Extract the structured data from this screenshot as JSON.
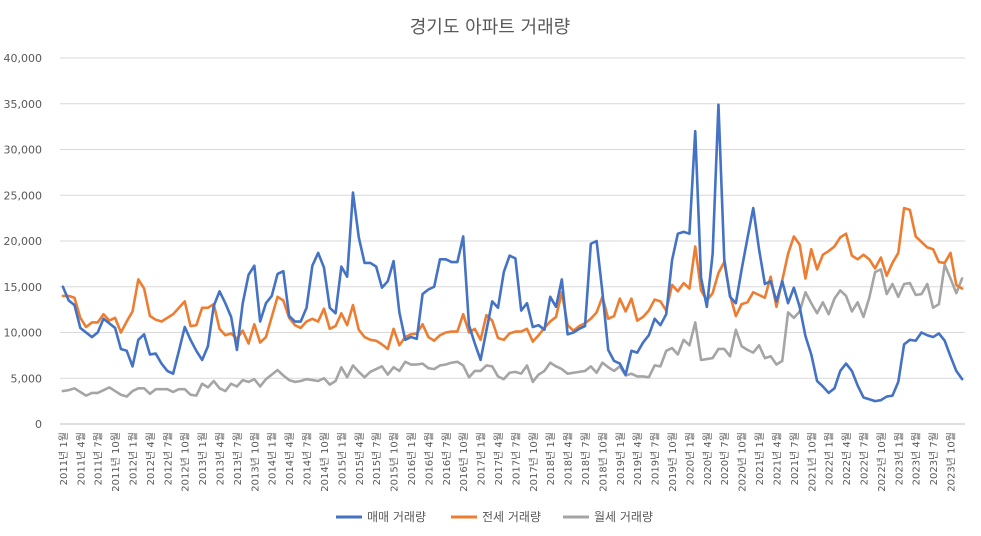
{
  "chart_data": {
    "type": "line",
    "title": "경기도 아파트 거래량",
    "xlabel": "",
    "ylabel": "",
    "ylim": [
      0,
      40000
    ],
    "y_ticks": [
      "0",
      "5,000",
      "10,000",
      "15,000",
      "20,000",
      "25,000",
      "30,000",
      "35,000",
      "40,000"
    ],
    "grid": true,
    "legend_position": "bottom",
    "categories": [
      "2011년 1월",
      "2011년 2월",
      "2011년 3월",
      "2011년 4월",
      "2011년 5월",
      "2011년 6월",
      "2011년 7월",
      "2011년 8월",
      "2011년 9월",
      "2011년 10월",
      "2011년 11월",
      "2011년 12월",
      "2012년 1월",
      "2012년 2월",
      "2012년 3월",
      "2012년 4월",
      "2012년 5월",
      "2012년 6월",
      "2012년 7월",
      "2012년 8월",
      "2012년 9월",
      "2012년 10월",
      "2012년 11월",
      "2012년 12월",
      "2013년 1월",
      "2013년 2월",
      "2013년 3월",
      "2013년 4월",
      "2013년 5월",
      "2013년 6월",
      "2013년 7월",
      "2013년 8월",
      "2013년 9월",
      "2013년 10월",
      "2013년 11월",
      "2013년 12월",
      "2014년 1월",
      "2014년 2월",
      "2014년 3월",
      "2014년 4월",
      "2014년 5월",
      "2014년 6월",
      "2014년 7월",
      "2014년 8월",
      "2014년 9월",
      "2014년 10월",
      "2014년 11월",
      "2014년 12월",
      "2015년 1월",
      "2015년 2월",
      "2015년 3월",
      "2015년 4월",
      "2015년 5월",
      "2015년 6월",
      "2015년 7월",
      "2015년 8월",
      "2015년 9월",
      "2015년 10월",
      "2015년 11월",
      "2015년 12월",
      "2016년 1월",
      "2016년 2월",
      "2016년 3월",
      "2016년 4월",
      "2016년 5월",
      "2016년 6월",
      "2016년 7월",
      "2016년 8월",
      "2016년 9월",
      "2016년 10월",
      "2016년 11월",
      "2016년 12월",
      "2017년 1월",
      "2017년 2월",
      "2017년 3월",
      "2017년 4월",
      "2017년 5월",
      "2017년 6월",
      "2017년 7월",
      "2017년 8월",
      "2017년 9월",
      "2017년 10월",
      "2017년 11월",
      "2017년 12월",
      "2018년 1월",
      "2018년 2월",
      "2018년 3월",
      "2018년 4월",
      "2018년 5월",
      "2018년 6월",
      "2018년 7월",
      "2018년 8월",
      "2018년 9월",
      "2018년 10월",
      "2018년 11월",
      "2018년 12월",
      "2019년 1월",
      "2019년 2월",
      "2019년 3월",
      "2019년 4월",
      "2019년 5월",
      "2019년 6월",
      "2019년 7월",
      "2019년 8월",
      "2019년 9월",
      "2019년 10월",
      "2019년 11월",
      "2019년 12월",
      "2020년 1월",
      "2020년 2월",
      "2020년 3월",
      "2020년 4월",
      "2020년 5월",
      "2020년 6월",
      "2020년 7월",
      "2020년 8월",
      "2020년 9월",
      "2020년 10월",
      "2020년 11월",
      "2020년 12월",
      "2021년 1월",
      "2021년 2월",
      "2021년 3월",
      "2021년 4월",
      "2021년 5월",
      "2021년 6월",
      "2021년 7월",
      "2021년 8월",
      "2021년 9월",
      "2021년 10월",
      "2021년 11월",
      "2021년 12월",
      "2022년 1월",
      "2022년 2월",
      "2022년 3월",
      "2022년 4월",
      "2022년 5월",
      "2022년 6월",
      "2022년 7월",
      "2022년 8월",
      "2022년 9월",
      "2022년 10월",
      "2022년 11월",
      "2022년 12월",
      "2023년 1월",
      "2023년 2월",
      "2023년 3월",
      "2023년 4월",
      "2023년 5월",
      "2023년 6월",
      "2023년 7월",
      "2023년 8월",
      "2023년 9월",
      "2023년 10월",
      "2023년 11월",
      "2023년 12월"
    ],
    "x_tick_labels": [
      "2011년 1월",
      "2011년 4월",
      "2011년 7월",
      "2011년 10월",
      "2012년 1월",
      "2012년 4월",
      "2012년 7월",
      "2012년 10월",
      "2013년 1월",
      "2013년 4월",
      "2013년 7월",
      "2013년 10월",
      "2014년 1월",
      "2014년 4월",
      "2014년 7월",
      "2014년 10월",
      "2015년 1월",
      "2015년 4월",
      "2015년 7월",
      "2015년 10월",
      "2016년 1월",
      "2016년 4월",
      "2016년 7월",
      "2016년 10월",
      "2017년 1월",
      "2017년 4월",
      "2017년 7월",
      "2017년 10월",
      "2018년 1월",
      "2018년 4월",
      "2018년 7월",
      "2018년 10월",
      "2019년 1월",
      "2019년 4월",
      "2019년 7월",
      "2019년 10월",
      "2020년 1월",
      "2020년 4월",
      "2020년 7월",
      "2020년 10월",
      "2021년 1월",
      "2021년 4월",
      "2021년 7월",
      "2021년 10월",
      "2022년 1월",
      "2022년 4월",
      "2022년 7월",
      "2022년 10월",
      "2023년 1월",
      "2023년 4월",
      "2023년 7월",
      "2023년 10월"
    ],
    "series": [
      {
        "name": "매매 거래량",
        "color": "#4472c4",
        "values": [
          15000,
          13500,
          13000,
          10500,
          10000,
          9500,
          10000,
          11500,
          11000,
          10500,
          8200,
          8000,
          6300,
          9200,
          9800,
          7600,
          7700,
          6600,
          5800,
          5500,
          8000,
          10600,
          9200,
          8000,
          7000,
          8500,
          12900,
          14500,
          13200,
          11700,
          8100,
          13200,
          16300,
          17300,
          11200,
          13200,
          14000,
          16400,
          16700,
          11800,
          11200,
          11200,
          12700,
          17300,
          18700,
          17100,
          12700,
          12100,
          17200,
          16100,
          25300,
          20400,
          17600,
          17600,
          17200,
          14900,
          15600,
          17800,
          12200,
          9200,
          9500,
          9300,
          14200,
          14700,
          15000,
          18000,
          18000,
          17700,
          17700,
          20500,
          10800,
          8800,
          7000,
          10200,
          13400,
          12700,
          16600,
          18400,
          18100,
          12400,
          13200,
          10600,
          10800,
          10300,
          13900,
          12800,
          15800,
          9800,
          10000,
          10400,
          10700,
          19700,
          20000,
          14400,
          8100,
          6900,
          6600,
          5400,
          8000,
          7800,
          8900,
          9700,
          11500,
          10800,
          12000,
          17900,
          20800,
          21000,
          20800,
          32000,
          16000,
          12800,
          18600,
          34900,
          18000,
          13900,
          13200,
          16900,
          20300,
          23600,
          19100,
          15300,
          15600,
          13400,
          15600,
          13200,
          14900,
          12800,
          9600,
          7600,
          4700,
          4100,
          3400,
          3900,
          5800,
          6600,
          5800,
          4200,
          2900,
          2700,
          2500,
          2600,
          3000,
          3100,
          4600,
          8700,
          9200,
          9100,
          10000,
          9700,
          9500,
          9900,
          9100,
          7400,
          5800,
          4900
        ]
      },
      {
        "name": "전세 거래량",
        "color": "#ed7d31",
        "values": [
          14000,
          14000,
          13800,
          11600,
          10600,
          11100,
          11100,
          12000,
          11300,
          11600,
          10000,
          11200,
          12300,
          15800,
          14800,
          11800,
          11400,
          11200,
          11600,
          12000,
          12700,
          13400,
          10700,
          10800,
          12700,
          12700,
          13100,
          10400,
          9700,
          9900,
          9300,
          10200,
          8800,
          10900,
          8900,
          9500,
          11700,
          13900,
          13500,
          11600,
          10800,
          10500,
          11200,
          11500,
          11200,
          12600,
          10400,
          10700,
          12100,
          10800,
          13000,
          10300,
          9500,
          9200,
          9100,
          8700,
          8200,
          10400,
          8600,
          9500,
          9800,
          9900,
          10900,
          9500,
          9100,
          9700,
          10000,
          10100,
          10100,
          12000,
          10000,
          10400,
          9200,
          11900,
          11300,
          9400,
          9200,
          9900,
          10100,
          10100,
          10400,
          9000,
          9700,
          10500,
          11200,
          11700,
          14400,
          10800,
          10200,
          10700,
          11000,
          11500,
          12200,
          13900,
          11500,
          11800,
          13700,
          12300,
          13700,
          11300,
          11700,
          12400,
          13600,
          13400,
          12400,
          15200,
          14500,
          15400,
          14800,
          19400,
          14600,
          13500,
          14300,
          16500,
          17700,
          14100,
          11800,
          13100,
          13300,
          14400,
          14100,
          13800,
          16100,
          12800,
          15700,
          18600,
          20500,
          19600,
          15900,
          19100,
          16900,
          18500,
          18900,
          19400,
          20400,
          20800,
          18400,
          18000,
          18500,
          18000,
          17000,
          18200,
          16200,
          17600,
          18700,
          23600,
          23400,
          20500,
          19900,
          19300,
          19100,
          17700,
          17600,
          18700,
          15200,
          14800
        ]
      },
      {
        "name": "월세 거래량",
        "color": "#a5a5a5",
        "values": [
          3600,
          3700,
          3900,
          3500,
          3100,
          3400,
          3400,
          3700,
          4000,
          3600,
          3200,
          3000,
          3600,
          3900,
          3900,
          3300,
          3800,
          3800,
          3800,
          3500,
          3800,
          3800,
          3200,
          3100,
          4400,
          4000,
          4700,
          3900,
          3600,
          4400,
          4100,
          4800,
          4600,
          4900,
          4100,
          4900,
          5400,
          5900,
          5300,
          4800,
          4600,
          4700,
          4900,
          4800,
          4700,
          5000,
          4300,
          4700,
          6200,
          5100,
          6400,
          5700,
          5100,
          5700,
          6000,
          6300,
          5400,
          6200,
          5800,
          6800,
          6500,
          6500,
          6600,
          6100,
          6000,
          6400,
          6500,
          6700,
          6800,
          6400,
          5100,
          5800,
          5800,
          6400,
          6300,
          5200,
          4900,
          5600,
          5700,
          5500,
          6400,
          4600,
          5400,
          5800,
          6700,
          6300,
          6000,
          5500,
          5600,
          5700,
          5800,
          6300,
          5600,
          6700,
          6200,
          5800,
          6300,
          5300,
          5500,
          5200,
          5200,
          5100,
          6400,
          6300,
          8000,
          8300,
          7600,
          9200,
          8600,
          11100,
          7000,
          7100,
          7200,
          8200,
          8200,
          7400,
          10300,
          8500,
          8100,
          7800,
          8600,
          7200,
          7400,
          6500,
          6900,
          12200,
          11600,
          12300,
          14400,
          13200,
          12100,
          13300,
          12000,
          13700,
          14600,
          14000,
          12300,
          13300,
          11700,
          13800,
          16600,
          16900,
          14200,
          15300,
          13900,
          15300,
          15400,
          14100,
          14200,
          15300,
          12700,
          13100,
          17400,
          15900,
          14300,
          15900
        ]
      }
    ]
  }
}
